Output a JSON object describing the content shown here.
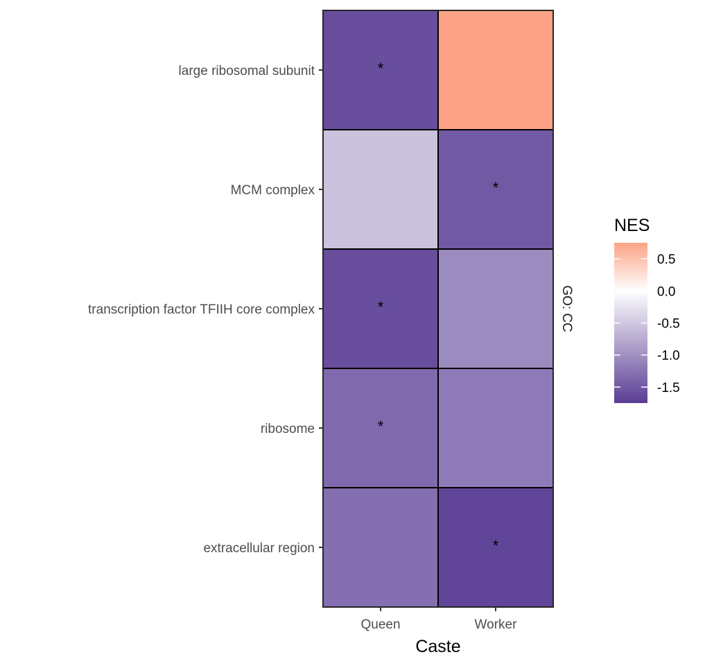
{
  "chart_data": {
    "type": "heatmap",
    "xlabel": "Caste",
    "x_categories": [
      "Queen",
      "Worker"
    ],
    "y_categories": [
      "large ribosomal subunit",
      "MCM complex",
      "transcription factor TFIIH core complex",
      "ribosome",
      "extracellular region"
    ],
    "facet_label": "GO: CC",
    "legend": {
      "title": "NES",
      "ticks": [
        0.5,
        0.0,
        -0.5,
        -1.0,
        -1.5
      ],
      "tick_labels": [
        "0.5",
        "0.0",
        "-0.5",
        "-1.0",
        "-1.5"
      ],
      "range": [
        -1.75,
        0.75
      ],
      "position": "right",
      "low_color": "#5a3d94",
      "mid_color": "#ffffff",
      "high_color": "#fca385"
    },
    "cells": [
      {
        "y": "large ribosomal subunit",
        "x": "Queen",
        "value": -1.6,
        "significant": true,
        "mark": "*"
      },
      {
        "y": "large ribosomal subunit",
        "x": "Worker",
        "value": 0.75,
        "significant": false,
        "mark": ""
      },
      {
        "y": "MCM complex",
        "x": "Queen",
        "value": -0.55,
        "significant": false,
        "mark": ""
      },
      {
        "y": "MCM complex",
        "x": "Worker",
        "value": -1.5,
        "significant": true,
        "mark": "*"
      },
      {
        "y": "transcription factor TFIIH core complex",
        "x": "Queen",
        "value": -1.6,
        "significant": true,
        "mark": "*"
      },
      {
        "y": "transcription factor TFIIH core complex",
        "x": "Worker",
        "value": -1.05,
        "significant": false,
        "mark": ""
      },
      {
        "y": "ribosome",
        "x": "Queen",
        "value": -1.35,
        "significant": true,
        "mark": "*"
      },
      {
        "y": "ribosome",
        "x": "Worker",
        "value": -1.2,
        "significant": false,
        "mark": ""
      },
      {
        "y": "extracellular region",
        "x": "Queen",
        "value": -1.3,
        "significant": false,
        "mark": ""
      },
      {
        "y": "extracellular region",
        "x": "Worker",
        "value": -1.68,
        "significant": true,
        "mark": "*"
      }
    ]
  }
}
